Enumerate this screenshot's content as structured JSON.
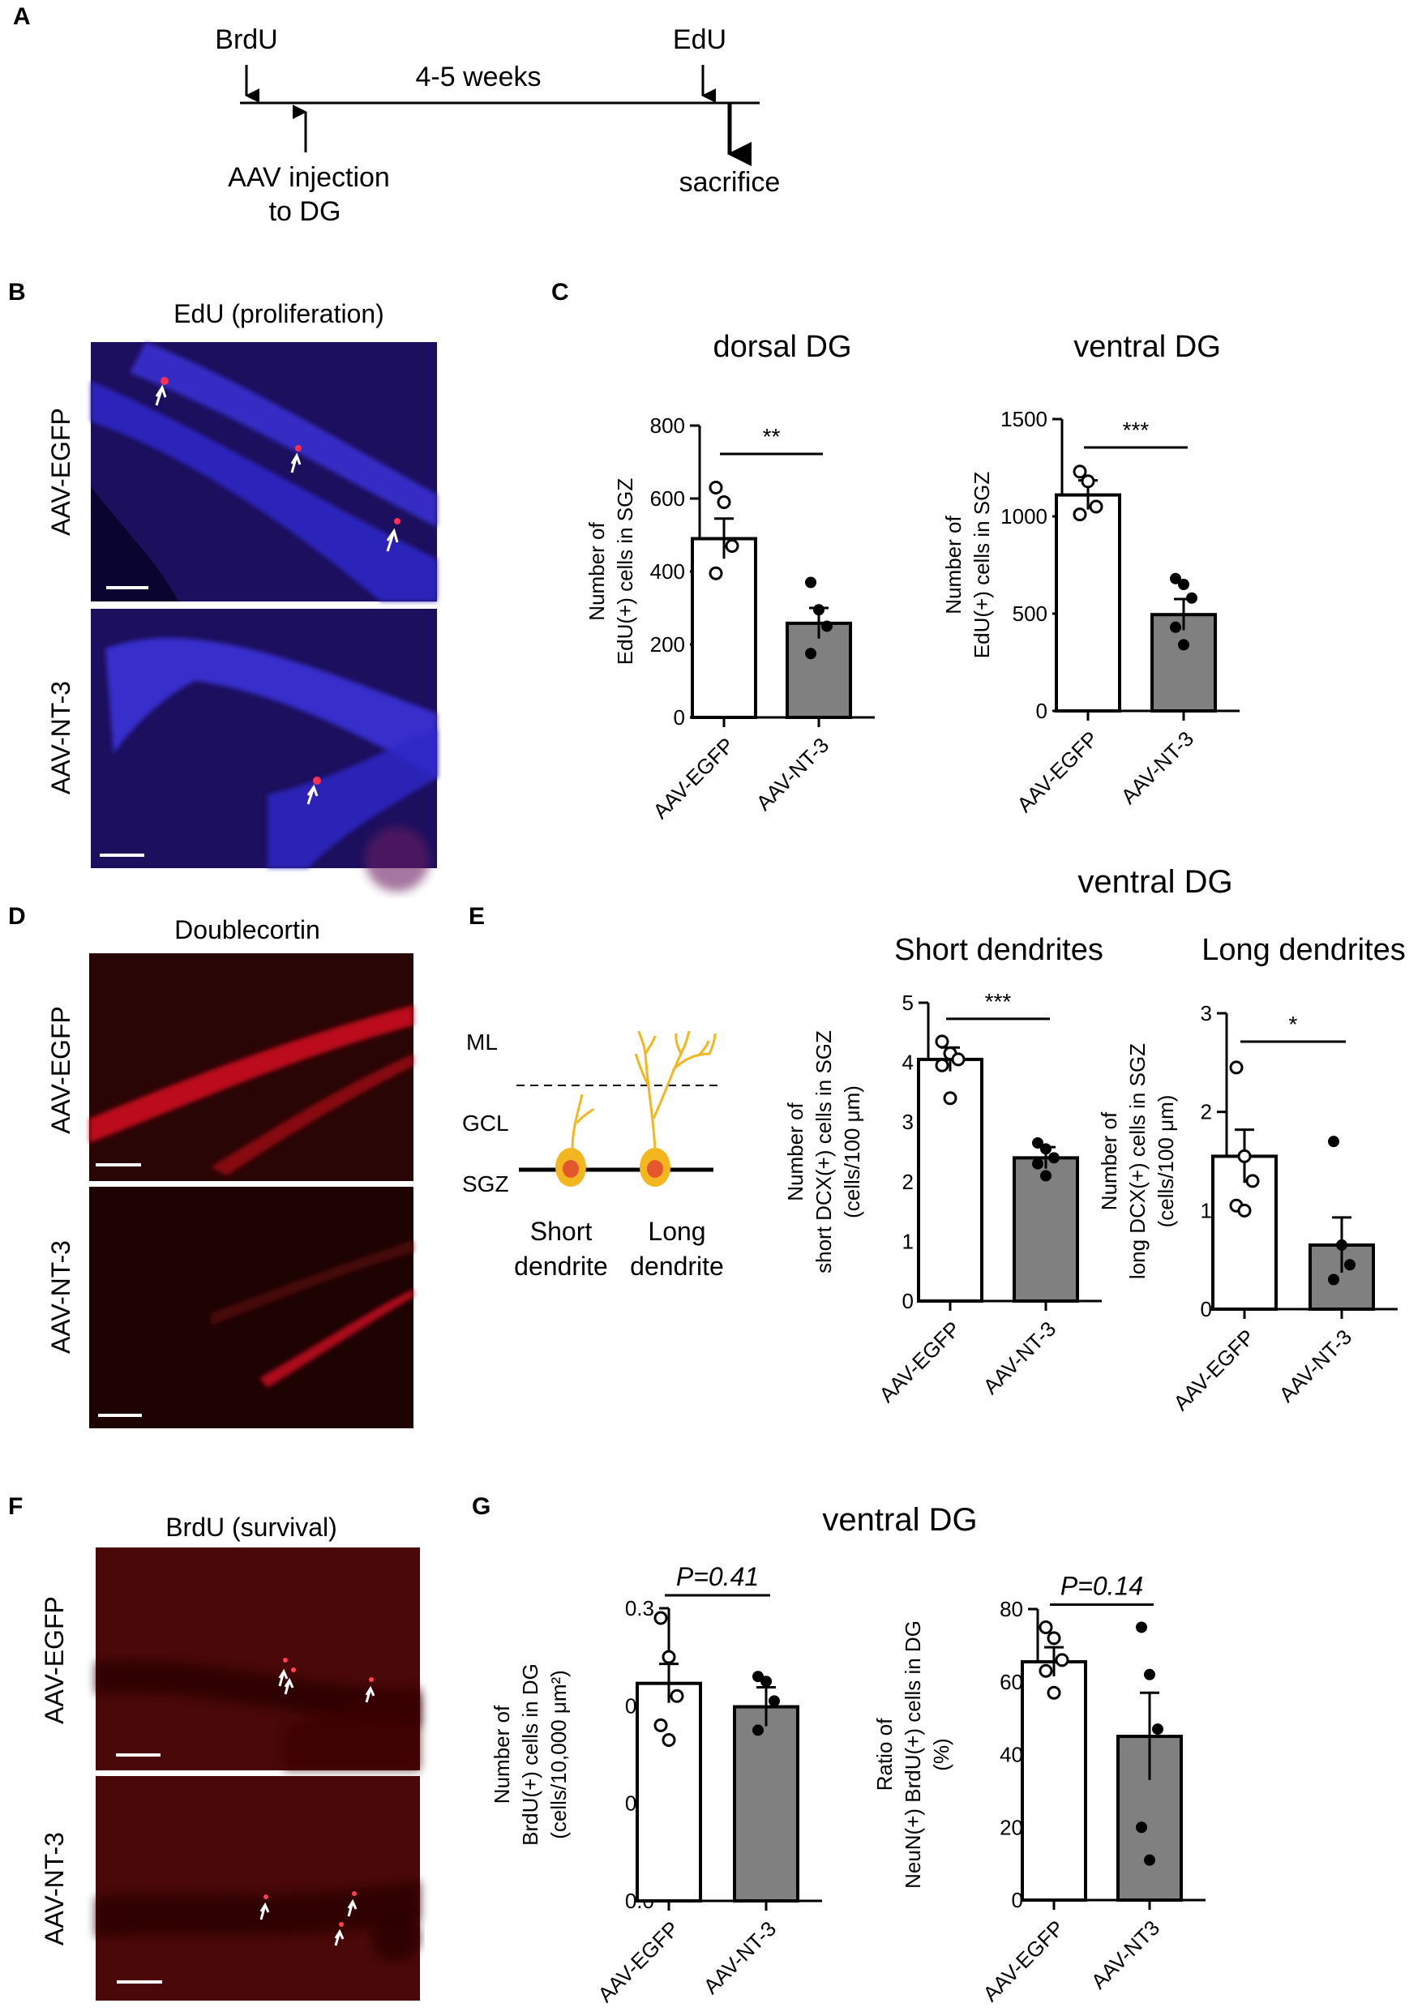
{
  "panels": {
    "A": "A",
    "B": "B",
    "C": "C",
    "D": "D",
    "E": "E",
    "F": "F",
    "G": "G"
  },
  "timeline": {
    "brdu": "BrdU",
    "edu": "EdU",
    "duration": "4-5 weeks",
    "injection_line1": "AAV injection",
    "injection_line2": "to DG",
    "sacrifice": "sacrifice"
  },
  "micrographs": {
    "B_title": "EdU (proliferation)",
    "D_title": "Doublecortin",
    "F_title": "BrdU (survival)",
    "row_label_egfp": "AAV-EGFP",
    "row_label_nt3": "AAV-NT-3",
    "fluor_blue": "#2a23c8",
    "fluor_red": "#c8102e"
  },
  "headings": {
    "E_ventral": "ventral DG",
    "G_ventral": "ventral DG"
  },
  "dendrite_diagram": {
    "ml": "ML",
    "gcl": "GCL",
    "sgz": "SGZ",
    "short_line1": "Short",
    "short_line2": "dendrite",
    "long_line1": "Long",
    "long_line2": "dendrite",
    "neuron_color": "#f3b61f",
    "nucleus_color": "#e4572e"
  },
  "colors": {
    "filled_bar": "#808080",
    "open_bar": "#ffffff"
  },
  "chart_data": [
    {
      "id": "C-dorsal",
      "type": "bar",
      "title": "dorsal DG",
      "ylabel": [
        "Number of",
        "EdU(+) cells in SGZ"
      ],
      "categories": [
        "AAV-EGFP",
        "AAV-NT-3"
      ],
      "ylim": [
        0,
        800
      ],
      "yticks": [
        0,
        200,
        400,
        600,
        800
      ],
      "tick_labels": [
        "0",
        "200",
        "400",
        "600",
        "800"
      ],
      "values": [
        490,
        258
      ],
      "sem": [
        55,
        42
      ],
      "points": [
        [
          630,
          590,
          470,
          395
        ],
        [
          370,
          295,
          250,
          175
        ]
      ],
      "significance": "**"
    },
    {
      "id": "C-ventral",
      "type": "bar",
      "title": "ventral DG",
      "ylabel": [
        "Number of",
        "EdU(+) cells in SGZ"
      ],
      "categories": [
        "AAV-EGFP",
        "AAV-NT-3"
      ],
      "ylim": [
        0,
        1500
      ],
      "yticks": [
        0,
        500,
        1000,
        1500
      ],
      "tick_labels": [
        "0",
        "500",
        "1000",
        "1500"
      ],
      "values": [
        1110,
        495
      ],
      "sem": [
        75,
        80
      ],
      "points": [
        [
          1230,
          1180,
          1050,
          1010
        ],
        [
          680,
          650,
          580,
          430,
          340
        ]
      ],
      "significance": "***"
    },
    {
      "id": "E-short",
      "type": "bar",
      "title": "Short dendrites",
      "ylabel": [
        "Number of",
        "short DCX(+) cells in SGZ",
        "(cells/100 μm)"
      ],
      "categories": [
        "AAV-EGFP",
        "AAV-NT-3"
      ],
      "ylim": [
        0,
        5
      ],
      "yticks": [
        0,
        1,
        2,
        3,
        4,
        5
      ],
      "tick_labels": [
        "0",
        "1",
        "2",
        "3",
        "4",
        "5"
      ],
      "values": [
        4.05,
        2.4
      ],
      "sem": [
        0.2,
        0.18
      ],
      "points": [
        [
          4.35,
          4.15,
          4.05,
          3.95,
          3.4
        ],
        [
          2.65,
          2.55,
          2.4,
          2.3,
          2.1
        ]
      ],
      "significance": "***"
    },
    {
      "id": "E-long",
      "type": "bar",
      "title": "Long dendrites",
      "ylabel": [
        "Number of",
        "long DCX(+) cells in SGZ",
        "(cells/100 μm)"
      ],
      "categories": [
        "AAV-EGFP",
        "AAV-NT-3"
      ],
      "ylim": [
        0,
        3
      ],
      "yticks": [
        0,
        1,
        2,
        3
      ],
      "tick_labels": [
        "0",
        "1",
        "2",
        "3"
      ],
      "values": [
        1.55,
        0.65
      ],
      "sem": [
        0.27,
        0.28
      ],
      "points": [
        [
          2.45,
          1.55,
          1.3,
          1.05,
          1.0
        ],
        [
          1.7,
          0.65,
          0.45,
          0.3
        ]
      ],
      "significance": "*"
    },
    {
      "id": "G-brdu",
      "type": "bar",
      "title": "",
      "ylabel": [
        "Number of",
        "BrdU(+) cells in DG",
        "(cells/10,000 μm²)"
      ],
      "categories": [
        "AAV-EGFP",
        "AAV-NT-3"
      ],
      "ylim": [
        0,
        0.3
      ],
      "yticks": [
        0,
        0.1,
        0.2,
        0.3
      ],
      "tick_labels": [
        "0.0",
        "0.1",
        "0.2",
        "0.3"
      ],
      "values": [
        0.223,
        0.199
      ],
      "sem": [
        0.02,
        0.02
      ],
      "points": [
        [
          0.29,
          0.25,
          0.21,
          0.18,
          0.165
        ],
        [
          0.23,
          0.225,
          0.205,
          0.175
        ]
      ],
      "significance": "P=0.41"
    },
    {
      "id": "G-ratio",
      "type": "bar",
      "title": "",
      "ylabel": [
        "Ratio of",
        "NeuN(+) BrdU(+) cells in DG",
        "(%)"
      ],
      "categories": [
        "AAV-EGFP",
        "AAV-NT3"
      ],
      "ylim": [
        0,
        80
      ],
      "yticks": [
        0,
        20,
        40,
        60,
        80
      ],
      "tick_labels": [
        "0",
        "20",
        "40",
        "60",
        "80"
      ],
      "values": [
        65.5,
        45
      ],
      "sem": [
        4,
        12
      ],
      "points": [
        [
          75,
          72,
          66,
          63,
          57
        ],
        [
          75,
          62,
          47,
          20,
          11
        ]
      ],
      "significance": "P=0.14"
    }
  ]
}
